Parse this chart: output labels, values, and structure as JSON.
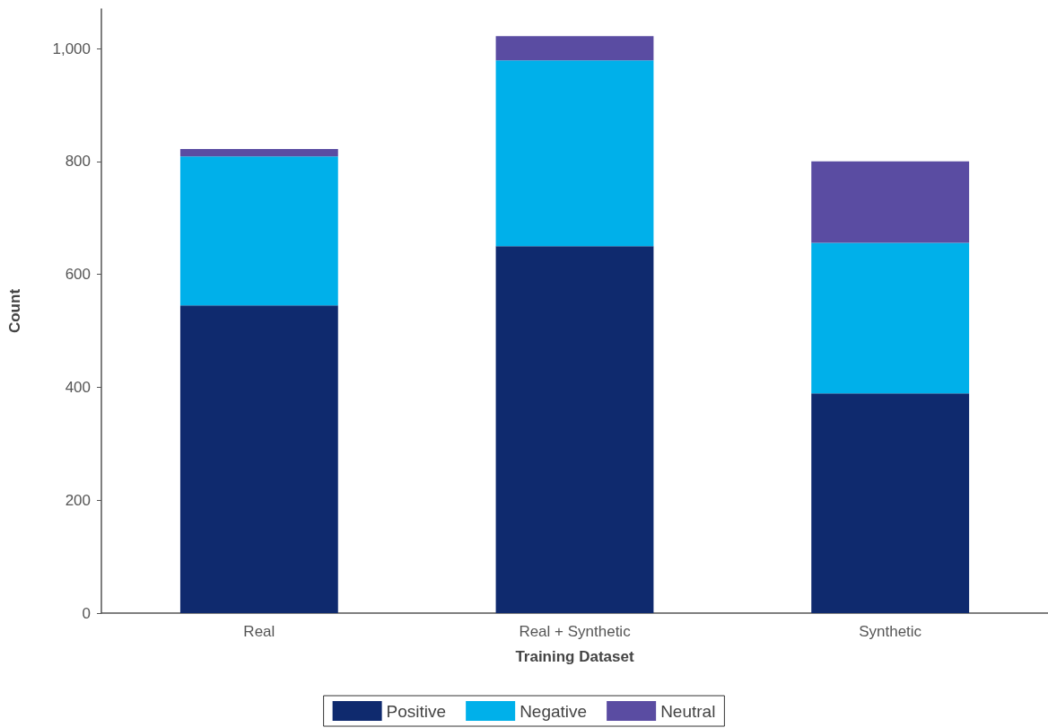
{
  "chart_data": {
    "type": "bar",
    "stacked": true,
    "xlabel": "Training Dataset",
    "ylabel": "Count",
    "categories": [
      "Real",
      "Real + Synthetic",
      "Synthetic"
    ],
    "series": [
      {
        "name": "Positive",
        "color": "#0f2a6e",
        "values": [
          545,
          650,
          389
        ]
      },
      {
        "name": "Negative",
        "color": "#00b0ea",
        "values": [
          264,
          329,
          267
        ]
      },
      {
        "name": "Neutral",
        "color": "#5a4ca2",
        "values": [
          13,
          43,
          144
        ]
      }
    ],
    "ylim": [
      0,
      1070
    ],
    "yticks": [
      0,
      200,
      400,
      600,
      800,
      {
        "value": 1000,
        "label": "1,000"
      }
    ],
    "grid": false,
    "legend": "bottom"
  }
}
